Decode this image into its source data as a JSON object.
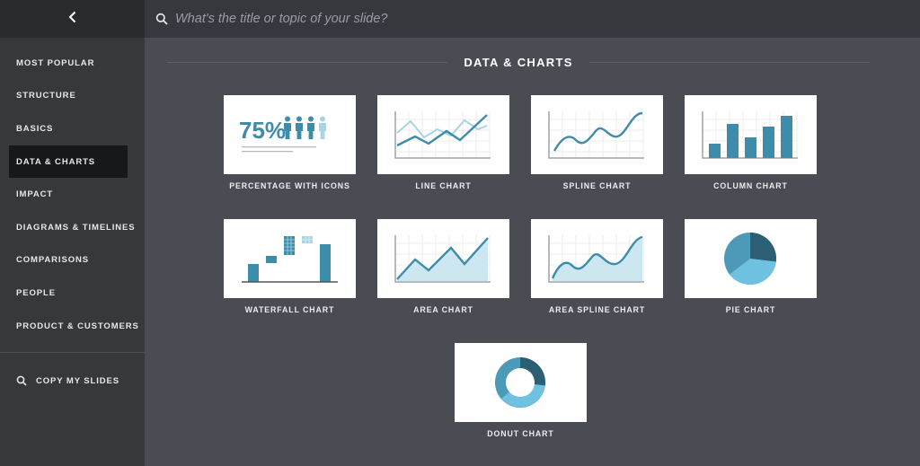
{
  "colors": {
    "accent_dark": "#2c5f74",
    "accent": "#3d8caa",
    "accent_light": "#6ec1df",
    "accent_pale": "#a9d4e3",
    "sidebar_bg": "#36383c",
    "main_bg": "#4a4c54",
    "active_item_bg": "#17181a"
  },
  "sidebar": {
    "back_icon": "chevron-left-icon",
    "items": [
      {
        "label": "MOST POPULAR",
        "active": false
      },
      {
        "label": "STRUCTURE",
        "active": false
      },
      {
        "label": "BASICS",
        "active": false
      },
      {
        "label": "DATA & CHARTS",
        "active": true
      },
      {
        "label": "IMPACT",
        "active": false
      },
      {
        "label": "DIAGRAMS & TIMELINES",
        "active": false
      },
      {
        "label": "COMPARISONS",
        "active": false
      },
      {
        "label": "PEOPLE",
        "active": false
      },
      {
        "label": "PRODUCT & CUSTOMERS",
        "active": false
      }
    ],
    "copy_my_slides": {
      "label": "COPY MY SLIDES",
      "icon": "search-icon"
    }
  },
  "search": {
    "placeholder": "What's the title or topic of your slide?",
    "value": "",
    "icon": "search-icon"
  },
  "section": {
    "title": "DATA & CHARTS"
  },
  "tiles": [
    {
      "label": "PERCENTAGE WITH ICONS",
      "thumb_text": "75%",
      "icons": "person-icon",
      "people_total": 4,
      "people_highlighted": 3
    },
    {
      "label": "LINE CHART"
    },
    {
      "label": "SPLINE CHART"
    },
    {
      "label": "COLUMN CHART"
    },
    {
      "label": "WATERFALL CHART"
    },
    {
      "label": "AREA CHART"
    },
    {
      "label": "AREA SPLINE CHART"
    },
    {
      "label": "PIE CHART"
    },
    {
      "label": "DONUT CHART"
    }
  ]
}
